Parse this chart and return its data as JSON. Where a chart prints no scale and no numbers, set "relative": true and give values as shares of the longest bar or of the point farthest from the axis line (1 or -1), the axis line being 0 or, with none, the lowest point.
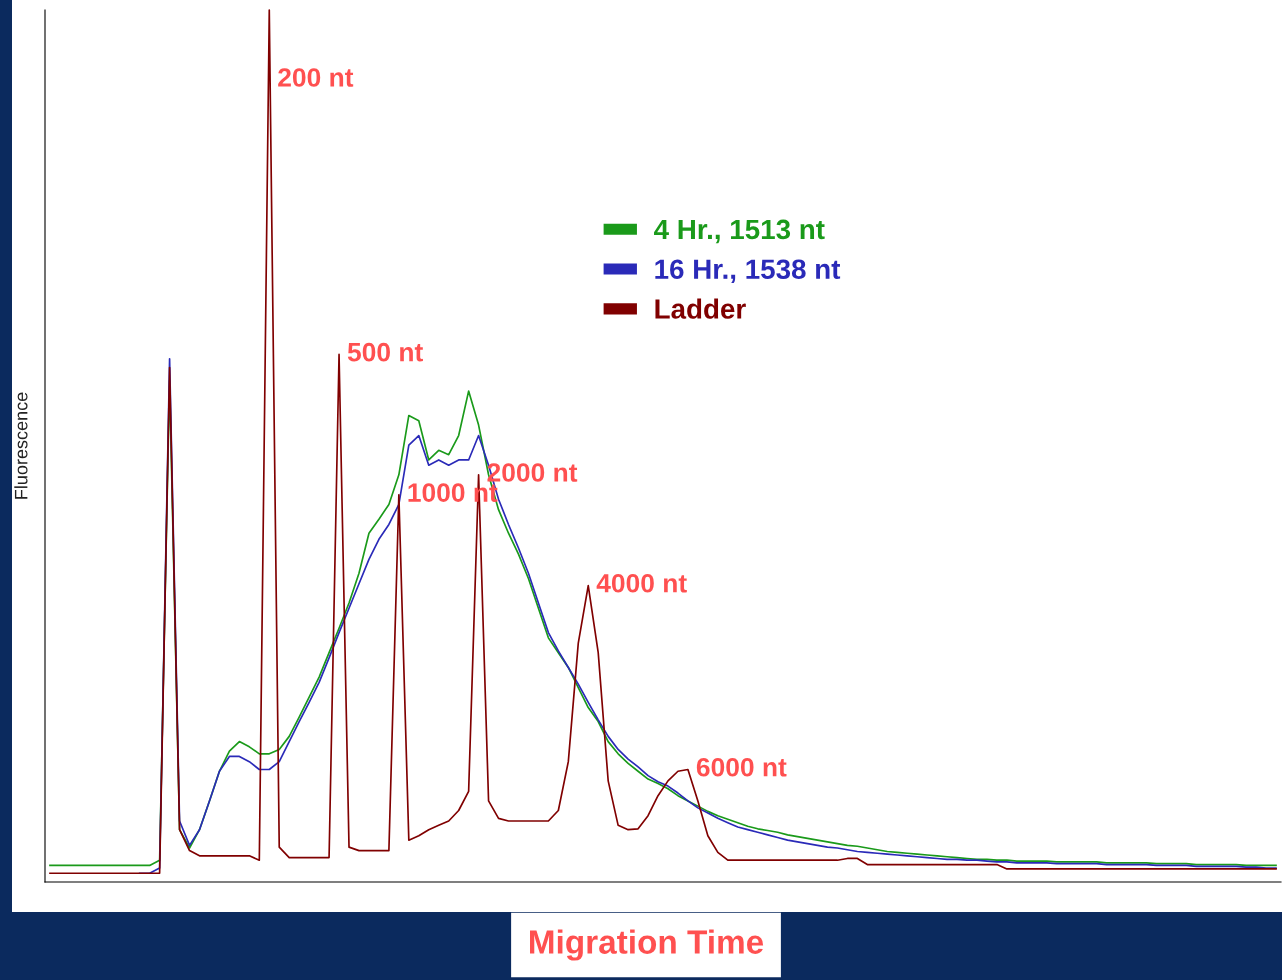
{
  "chart_data": {
    "type": "line",
    "relative": true,
    "ylabel": "Fluorescence",
    "xlabel": "Migration Time",
    "legend": "center",
    "grid": false,
    "marker": "none",
    "line_style": "solid",
    "categories": [
      null,
      null,
      null,
      null,
      null,
      null,
      null,
      null,
      null,
      null,
      null,
      null,
      null,
      null,
      null,
      null,
      null,
      null,
      null,
      null,
      null,
      null,
      null,
      null,
      null,
      null,
      null,
      null,
      null,
      null,
      null,
      null,
      null,
      null,
      null,
      null,
      null,
      null,
      null,
      null,
      null,
      null,
      null,
      null,
      null,
      null,
      null,
      null,
      null,
      null,
      null,
      null,
      null,
      null,
      null,
      null,
      null,
      null,
      null,
      null,
      null,
      null,
      null,
      null,
      null,
      null,
      null,
      null,
      null,
      null,
      null,
      null,
      null,
      null,
      null,
      null,
      null,
      null,
      null,
      null,
      null,
      null,
      null,
      null,
      null,
      null,
      null,
      null,
      null,
      null,
      null,
      null,
      null,
      null,
      null,
      null,
      null,
      null,
      null,
      null,
      null,
      null,
      null,
      null,
      null,
      null,
      null,
      null,
      null,
      null,
      null,
      null,
      null,
      null,
      null,
      null,
      null,
      null,
      null,
      null,
      null,
      null,
      null,
      null
    ],
    "series": [
      {
        "name": "4 Hr., 1513 nt",
        "color": "#1a9a1a",
        "values": [
          0.019,
          0.019,
          0.019,
          0.019,
          0.019,
          0.019,
          0.019,
          0.019,
          0.019,
          0.019,
          0.019,
          0.025,
          0.575,
          0.06,
          0.039,
          0.06,
          0.093,
          0.127,
          0.15,
          0.161,
          0.155,
          0.147,
          0.147,
          0.152,
          0.167,
          0.189,
          0.212,
          0.235,
          0.263,
          0.291,
          0.32,
          0.354,
          0.4,
          0.416,
          0.433,
          0.467,
          0.535,
          0.529,
          0.484,
          0.495,
          0.49,
          0.512,
          0.563,
          0.524,
          0.467,
          0.427,
          0.4,
          0.376,
          0.348,
          0.314,
          0.28,
          0.263,
          0.246,
          0.223,
          0.2,
          0.184,
          0.161,
          0.147,
          0.136,
          0.127,
          0.118,
          0.113,
          0.107,
          0.099,
          0.093,
          0.087,
          0.081,
          0.076,
          0.072,
          0.068,
          0.064,
          0.061,
          0.059,
          0.057,
          0.054,
          0.052,
          0.05,
          0.048,
          0.046,
          0.044,
          0.042,
          0.041,
          0.039,
          0.037,
          0.035,
          0.034,
          0.033,
          0.032,
          0.031,
          0.03,
          0.029,
          0.028,
          0.027,
          0.026,
          0.026,
          0.025,
          0.025,
          0.024,
          0.024,
          0.024,
          0.024,
          0.023,
          0.023,
          0.023,
          0.023,
          0.023,
          0.022,
          0.022,
          0.022,
          0.022,
          0.022,
          0.021,
          0.021,
          0.021,
          0.021,
          0.02,
          0.02,
          0.02,
          0.02,
          0.02,
          0.019,
          0.019,
          0.019,
          0.019
        ]
      },
      {
        "name": "16 Hr., 1538 nt",
        "color": "#2a2ab8",
        "values": [
          null,
          null,
          null,
          null,
          null,
          null,
          null,
          null,
          null,
          0.01,
          0.01,
          0.016,
          0.6,
          0.07,
          0.042,
          0.06,
          0.093,
          0.127,
          0.144,
          0.144,
          0.138,
          0.129,
          0.129,
          0.138,
          0.161,
          0.184,
          0.206,
          0.229,
          0.257,
          0.286,
          0.314,
          0.342,
          0.37,
          0.393,
          0.41,
          0.433,
          0.501,
          0.512,
          0.478,
          0.484,
          0.478,
          0.484,
          0.484,
          0.512,
          0.478,
          0.439,
          0.41,
          0.383,
          0.354,
          0.32,
          0.286,
          0.265,
          0.246,
          0.227,
          0.206,
          0.186,
          0.167,
          0.152,
          0.141,
          0.132,
          0.122,
          0.115,
          0.11,
          0.102,
          0.093,
          0.085,
          0.079,
          0.073,
          0.068,
          0.063,
          0.06,
          0.057,
          0.054,
          0.051,
          0.048,
          0.046,
          0.044,
          0.042,
          0.04,
          0.039,
          0.037,
          0.035,
          0.034,
          0.033,
          0.032,
          0.031,
          0.03,
          0.029,
          0.028,
          0.027,
          0.026,
          0.026,
          0.025,
          0.025,
          0.024,
          0.023,
          0.023,
          0.022,
          0.022,
          0.022,
          0.022,
          0.021,
          0.021,
          0.021,
          0.021,
          0.021,
          0.02,
          0.02,
          0.02,
          0.02,
          0.02,
          0.019,
          0.019,
          0.019,
          0.019,
          0.018,
          0.018,
          0.018,
          0.018,
          0.018,
          0.017,
          0.017,
          0.016,
          0.016
        ]
      },
      {
        "name": "Ladder",
        "color": "#800000",
        "values": [
          0.01,
          0.01,
          0.01,
          0.01,
          0.01,
          0.01,
          0.01,
          0.01,
          0.01,
          0.01,
          0.01,
          0.01,
          0.59,
          0.06,
          0.036,
          0.03,
          0.03,
          0.03,
          0.03,
          0.03,
          0.03,
          0.025,
          1.0,
          0.04,
          0.028,
          0.028,
          0.028,
          0.028,
          0.028,
          0.605,
          0.04,
          0.036,
          0.036,
          0.036,
          0.036,
          0.444,
          0.048,
          0.053,
          0.06,
          0.065,
          0.07,
          0.082,
          0.104,
          0.467,
          0.093,
          0.073,
          0.07,
          0.07,
          0.07,
          0.07,
          0.07,
          0.082,
          0.138,
          0.274,
          0.34,
          0.263,
          0.116,
          0.065,
          0.06,
          0.061,
          0.076,
          0.099,
          0.116,
          0.127,
          0.129,
          0.093,
          0.053,
          0.034,
          0.025,
          0.025,
          0.025,
          0.025,
          0.025,
          0.025,
          0.025,
          0.025,
          0.025,
          0.025,
          0.025,
          0.025,
          0.027,
          0.027,
          0.02,
          0.02,
          0.02,
          0.02,
          0.02,
          0.02,
          0.02,
          0.02,
          0.02,
          0.02,
          0.02,
          0.02,
          0.02,
          0.02,
          0.015,
          0.015,
          0.015,
          0.015,
          0.015,
          0.015,
          0.015,
          0.015,
          0.015,
          0.015,
          0.015,
          0.015,
          0.015,
          0.015,
          0.015,
          0.015,
          0.015,
          0.015,
          0.015,
          0.015,
          0.015,
          0.015,
          0.015,
          0.015,
          0.015,
          0.015,
          0.015,
          0.015
        ]
      }
    ],
    "annotations": [
      "200 nt",
      "500 nt",
      "1000 nt",
      "2000 nt",
      "4000 nt",
      "6000 nt"
    ]
  }
}
